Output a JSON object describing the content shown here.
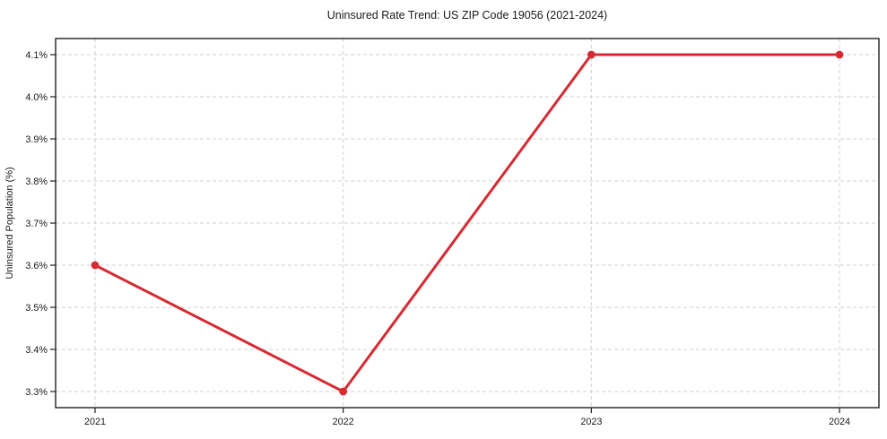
{
  "chart_data": {
    "type": "line",
    "title": "Uninsured Rate Trend: US ZIP Code 19056 (2021-2024)",
    "xlabel": "",
    "ylabel": "Uninsured Population (%)",
    "x": [
      2021,
      2022,
      2023,
      2024
    ],
    "x_tick_labels": [
      "2021",
      "2022",
      "2023",
      "2024"
    ],
    "series": [
      {
        "name": "Uninsured Rate",
        "values": [
          3.6,
          3.3,
          4.1,
          4.1
        ]
      }
    ],
    "y_ticks": [
      3.3,
      3.4,
      3.5,
      3.6,
      3.7,
      3.8,
      3.9,
      4.0,
      4.1
    ],
    "y_tick_labels": [
      "3.3%",
      "3.4%",
      "3.5%",
      "3.6%",
      "3.7%",
      "3.8%",
      "3.9%",
      "4.0%",
      "4.1%"
    ],
    "xlim": [
      2020.841,
      2024.159
    ],
    "ylim": [
      3.2617,
      4.1383
    ],
    "grid": "dashed",
    "legend": "none",
    "marker": "circle",
    "colors": {
      "line": "#d62b33",
      "marker": "#d62b33",
      "grid": "#d0d0d0",
      "axis": "#1f1f1f",
      "text": "#1a1a1a",
      "background": "#ffffff"
    }
  }
}
